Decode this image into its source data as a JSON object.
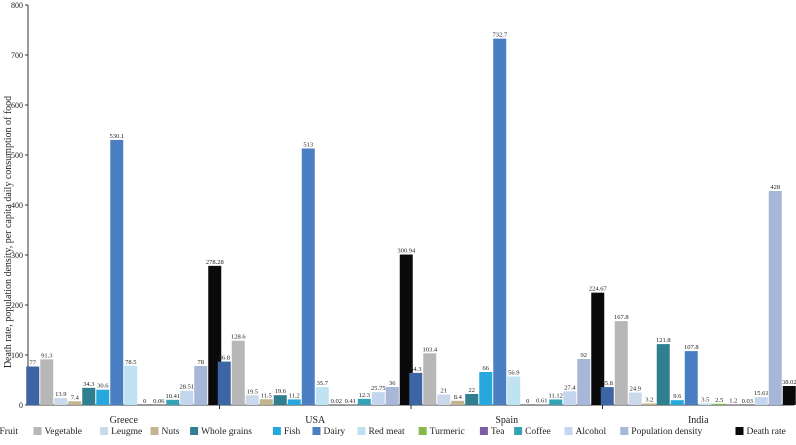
{
  "chart_data": {
    "type": "bar",
    "ylabel": "Death rate, population density, per capita daily consumption of food",
    "xlabel": "",
    "ylim": [
      0,
      800
    ],
    "yticks": [
      0,
      100,
      200,
      300,
      400,
      500,
      600,
      700,
      800
    ],
    "grid": false,
    "legend_position": "bottom",
    "categories": [
      "Greece",
      "USA",
      "Spain",
      "India"
    ],
    "series": [
      {
        "name": "Fruit",
        "color": "#3d64a3",
        "values": [
          77,
          86.8,
          64.3,
          35.8
        ],
        "labels": [
          "77",
          "86.8",
          "64.3",
          "35.8"
        ]
      },
      {
        "name": "Vegetable",
        "color": "#b7b7b7",
        "values": [
          91.3,
          128.6,
          103.4,
          167.8
        ],
        "labels": [
          "91.3",
          "128.6",
          "103.4",
          "167.8"
        ]
      },
      {
        "name": "Leugme",
        "color": "#c9d9ea",
        "values": [
          13.9,
          19.5,
          21,
          24.9
        ],
        "labels": [
          "13.9",
          "19.5",
          "21",
          "24.9"
        ]
      },
      {
        "name": "Nuts",
        "color": "#c2b48e",
        "values": [
          7.4,
          11.5,
          8.4,
          3.2
        ],
        "labels": [
          "7.4",
          "11.5",
          "8.4",
          "3.2"
        ]
      },
      {
        "name": "Whole grains",
        "color": "#2f7f8f",
        "values": [
          34.3,
          19.6,
          22,
          121.8
        ],
        "labels": [
          "34.3",
          "19.6",
          "22",
          "121.8"
        ]
      },
      {
        "name": "Fish",
        "color": "#26a8dc",
        "values": [
          30.6,
          11.2,
          66,
          9.6
        ],
        "labels": [
          "30.6",
          "11.2",
          "66",
          "9.6"
        ]
      },
      {
        "name": "Dairy",
        "color": "#4a7fc4",
        "values": [
          530.1,
          513,
          732.7,
          107.8
        ],
        "labels": [
          "530.1",
          "513",
          "732.7",
          "107.8"
        ]
      },
      {
        "name": "Red meat",
        "color": "#bfe3f2",
        "values": [
          78.5,
          35.7,
          56.9,
          3.5
        ],
        "labels": [
          "78.5",
          "35.7",
          "56.9",
          "3.5"
        ]
      },
      {
        "name": "Turmeric",
        "color": "#8bb84a",
        "values": [
          0,
          0.02,
          0,
          2.5
        ],
        "labels": [
          "0",
          "0.02",
          "0",
          "2.5"
        ]
      },
      {
        "name": "Tea",
        "color": "#7a5ca3",
        "values": [
          0.06,
          0.41,
          0.61,
          1.2
        ],
        "labels": [
          "0.06",
          "0.41",
          "0.61",
          "1.2"
        ]
      },
      {
        "name": "Coffee",
        "color": "#34a3b8",
        "values": [
          10.41,
          12.3,
          11.12,
          0.03
        ],
        "labels": [
          "10.41",
          "12.3",
          "11.12",
          "0.03"
        ]
      },
      {
        "name": "Alcohol",
        "color": "#c3d6ee",
        "values": [
          28.51,
          25.75,
          27.4,
          15.61
        ],
        "labels": [
          "28.51",
          "25.75",
          "27.4",
          "15.61"
        ]
      },
      {
        "name": "Population density",
        "color": "#a6b7d8",
        "values": [
          78,
          36,
          92,
          428
        ],
        "labels": [
          "78",
          "36",
          "92",
          "428"
        ]
      },
      {
        "name": "Death rate",
        "color": "#0a0a0a",
        "values": [
          278.28,
          300.94,
          224.67,
          38.02
        ],
        "labels": [
          "278.28",
          "300.94",
          "224.67",
          "38.02"
        ]
      }
    ]
  }
}
